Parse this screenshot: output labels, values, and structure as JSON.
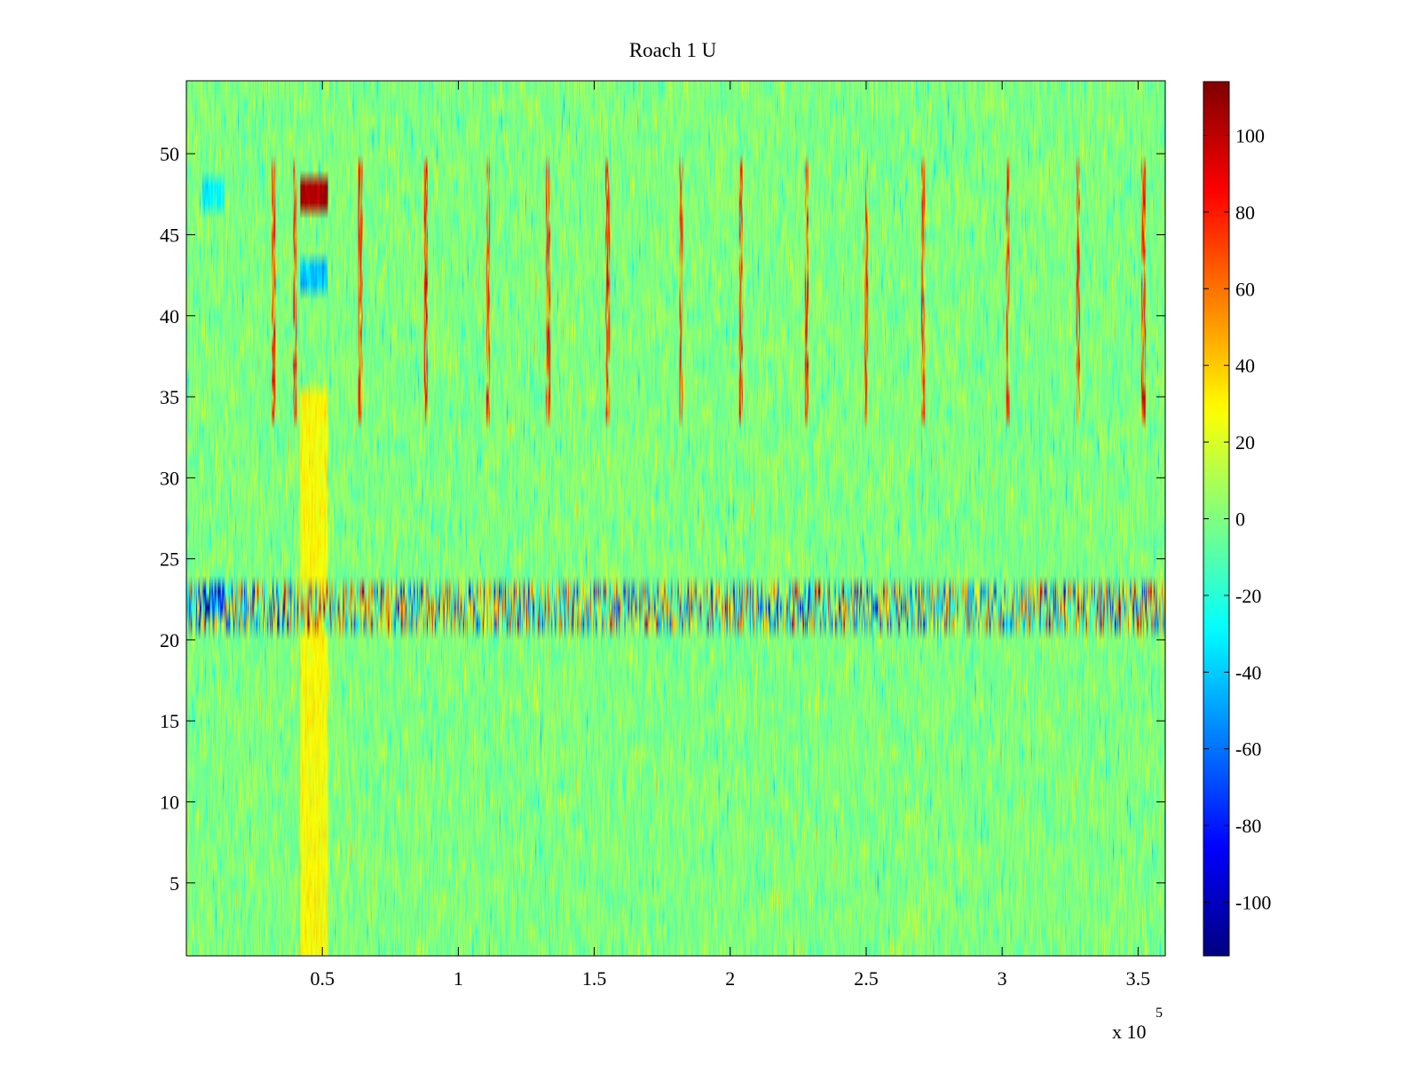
{
  "chart_data": {
    "type": "heatmap",
    "title": "Roach 1 U",
    "xlabel": "",
    "ylabel": "",
    "x_range": [
      0,
      360000
    ],
    "y_range": [
      0.5,
      54.5
    ],
    "x_exponent_label": "x 10",
    "x_exponent_power": "5",
    "xticks": [
      {
        "value": 50000,
        "label": "0.5"
      },
      {
        "value": 100000,
        "label": "1"
      },
      {
        "value": 150000,
        "label": "1.5"
      },
      {
        "value": 200000,
        "label": "2"
      },
      {
        "value": 250000,
        "label": "2.5"
      },
      {
        "value": 300000,
        "label": "3"
      },
      {
        "value": 350000,
        "label": "3.5"
      }
    ],
    "yticks": [
      {
        "value": 5,
        "label": "5"
      },
      {
        "value": 10,
        "label": "10"
      },
      {
        "value": 15,
        "label": "15"
      },
      {
        "value": 20,
        "label": "20"
      },
      {
        "value": 25,
        "label": "25"
      },
      {
        "value": 30,
        "label": "30"
      },
      {
        "value": 35,
        "label": "35"
      },
      {
        "value": 40,
        "label": "40"
      },
      {
        "value": 45,
        "label": "45"
      },
      {
        "value": 50,
        "label": "50"
      }
    ],
    "colormap": "jet",
    "color_range": [
      -114,
      114
    ],
    "colorbar_ticks": [
      {
        "value": 100,
        "label": "100"
      },
      {
        "value": 80,
        "label": "80"
      },
      {
        "value": 60,
        "label": "60"
      },
      {
        "value": 40,
        "label": "40"
      },
      {
        "value": 20,
        "label": "20"
      },
      {
        "value": 0,
        "label": "0"
      },
      {
        "value": -20,
        "label": "-20"
      },
      {
        "value": -40,
        "label": "-40"
      },
      {
        "value": -60,
        "label": "-60"
      },
      {
        "value": -80,
        "label": "-80"
      },
      {
        "value": -100,
        "label": "-100"
      }
    ],
    "rows": 54,
    "background_level": 0,
    "noise_amplitude": 14,
    "features": [
      {
        "kind": "warm_column_band",
        "x_range": [
          42000,
          52000
        ],
        "y_range": [
          0.5,
          35
        ],
        "level": 28
      },
      {
        "kind": "hot_spot",
        "x_range": [
          42000,
          52000
        ],
        "y_range": [
          46.5,
          48.5
        ],
        "level": 105
      },
      {
        "kind": "cold_spot",
        "x_range": [
          42000,
          52000
        ],
        "y_range": [
          41.5,
          43.5
        ],
        "level": -40
      },
      {
        "kind": "cold_spot",
        "x_range": [
          6000,
          14000
        ],
        "y_range": [
          21.5,
          23.5
        ],
        "level": -70
      },
      {
        "kind": "cold_spot",
        "x_range": [
          6000,
          14000
        ],
        "y_range": [
          46.5,
          48.5
        ],
        "level": -30
      },
      {
        "kind": "noisy_rows",
        "y_range": [
          20.5,
          23.5
        ],
        "amplitude": 80
      },
      {
        "kind": "spike_columns",
        "y_range": [
          33.5,
          49.5
        ],
        "x": [
          32000,
          40000,
          64000,
          88000,
          111000,
          133000,
          155000,
          182000,
          204000,
          228000,
          250000,
          271000,
          302000,
          328000,
          352000
        ],
        "level": 70
      }
    ]
  }
}
